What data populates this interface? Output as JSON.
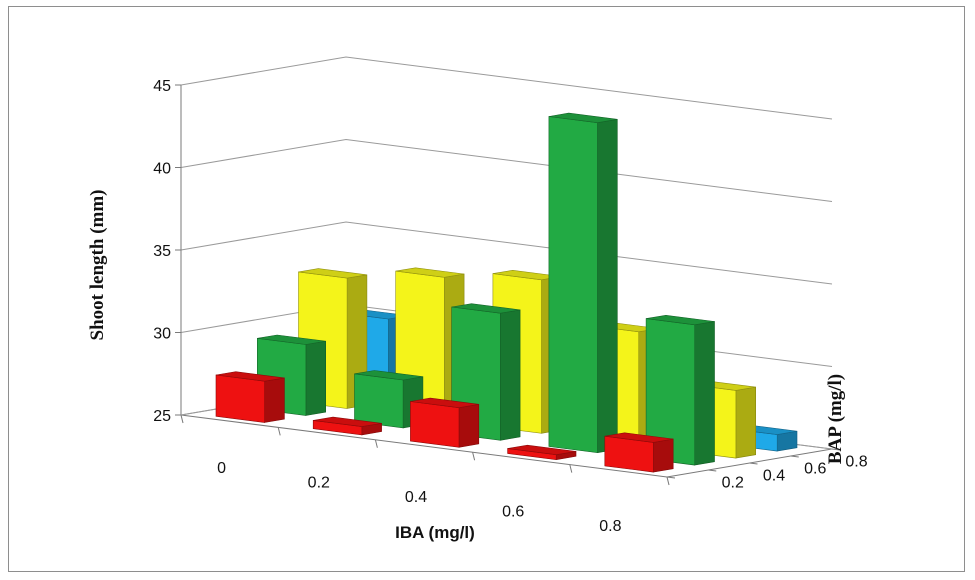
{
  "chart_data": {
    "type": "bar",
    "variant": "3d-column",
    "title": "",
    "xlabel": "IBA (mg/l)",
    "ylabel": "Shoot length (mm)",
    "zlabel": "BAP (mg/l)",
    "categories": [
      "0",
      "0.2",
      "0.4",
      "0.6",
      "0.8"
    ],
    "series_ticks": [
      "0.2",
      "0.4",
      "0.6",
      "0.8"
    ],
    "yticks": [
      "25",
      "30",
      "35",
      "40",
      "45"
    ],
    "ylim": [
      25,
      45
    ],
    "grid": true,
    "legend": "none",
    "series": [
      {
        "z": "0.2",
        "color": "#ee1111",
        "values": [
          27.5,
          25.5,
          27.4,
          25.3,
          26.8
        ]
      },
      {
        "z": "0.4",
        "color": "#22aa44",
        "values": [
          29.3,
          27.9,
          32.7,
          45.0,
          33.5
        ]
      },
      {
        "z": "0.6",
        "color": "#f4f41a",
        "values": [
          32.9,
          33.7,
          34.3,
          31.9,
          29.1
        ]
      },
      {
        "z": "0.8",
        "color": "#1fa9e8",
        "values": [
          30.0,
          28.9,
          29.0,
          28.1,
          26.0
        ]
      }
    ]
  }
}
